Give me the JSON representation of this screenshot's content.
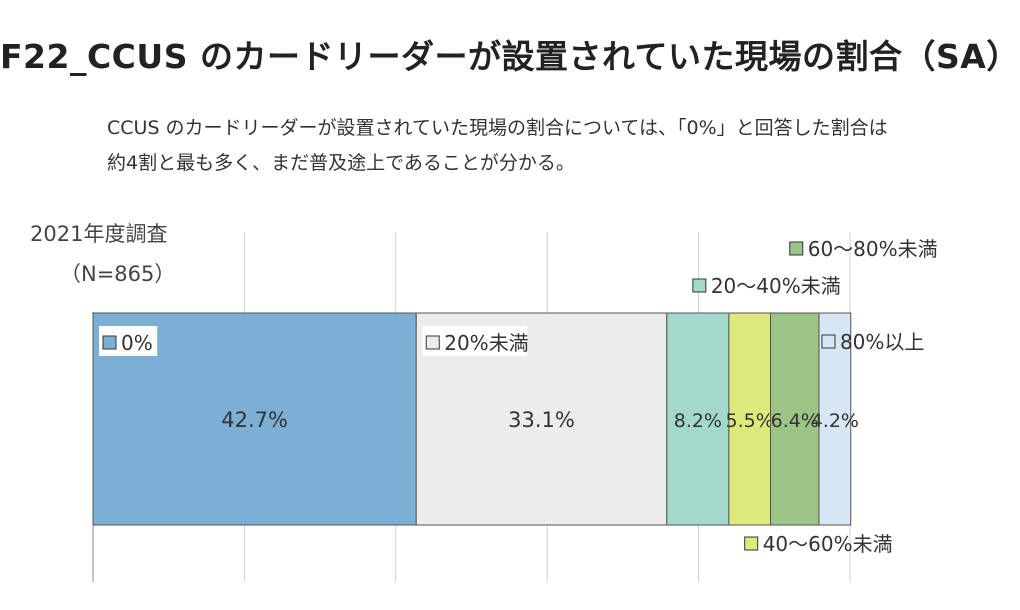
{
  "title": "F22_CCUS のカードリーダーが設置されていた現場の割合（SA）",
  "subtitle_lines": [
    "CCUS のカードリーダーが設置されていた現場の割合については、「0%」と回答した割合は",
    "約4割と最も多く、まだ普及途上であることが分かる。"
  ],
  "chart_data": {
    "type": "bar",
    "orientation": "horizontal-stacked-100",
    "categories": [
      "2021年度調査（N=865）"
    ],
    "category_label_lines": [
      "2021年度調査",
      "（N=865）"
    ],
    "series": [
      {
        "name": "0%",
        "values": [
          42.7
        ],
        "color": "#7bafd4",
        "label": "42.7%"
      },
      {
        "name": "20%未満",
        "values": [
          33.1
        ],
        "color": "#ececec",
        "label": "33.1%"
      },
      {
        "name": "20～40%未満",
        "values": [
          8.2
        ],
        "color": "#a3d9cc",
        "label": "8.2%"
      },
      {
        "name": "40～60%未満",
        "values": [
          5.5
        ],
        "color": "#dde97a",
        "label": "5.5%"
      },
      {
        "name": "60～80%未満",
        "values": [
          6.4
        ],
        "color": "#9dc487",
        "label": "6.4%"
      },
      {
        "name": "80%以上",
        "values": [
          4.2
        ],
        "color": "#d6e6f4",
        "label": "4.2%"
      }
    ],
    "xlim": [
      0,
      100
    ],
    "grid": true
  }
}
